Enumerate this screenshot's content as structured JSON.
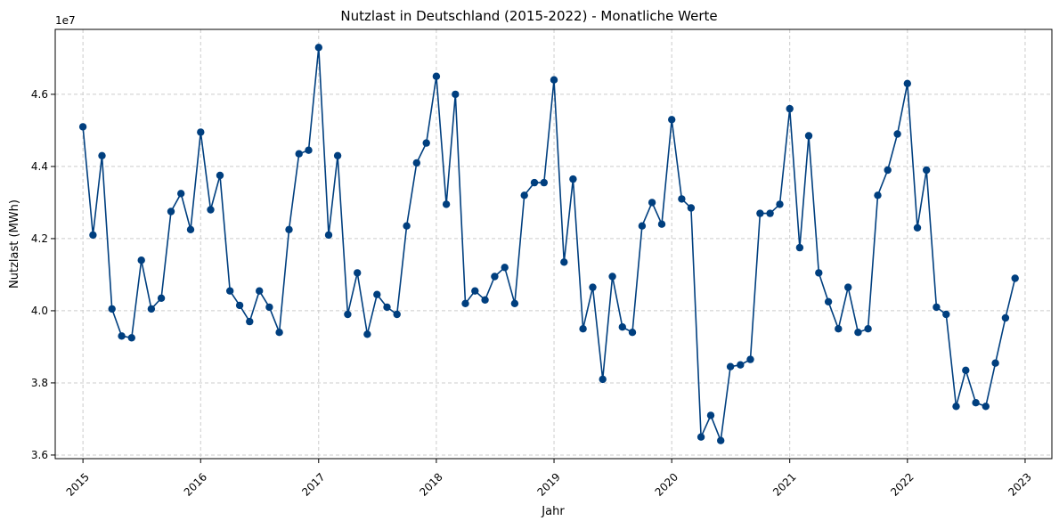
{
  "chart_data": {
    "type": "line",
    "title": "Nutzlast in Deutschland (2015-2022) - Monatliche Werte",
    "xlabel": "Jahr",
    "ylabel": "Nutzlast (MWh)",
    "y_offset_label": "1e7",
    "x_ticks": [
      "2015",
      "2016",
      "2017",
      "2018",
      "2019",
      "2020",
      "2021",
      "2022",
      "2023"
    ],
    "y_ticks": [
      "3.6",
      "3.8",
      "4.0",
      "4.2",
      "4.4",
      "4.6"
    ],
    "xlim": [
      "2014-10-07",
      "2023-03-25"
    ],
    "ylim": [
      35900000,
      47800000
    ],
    "grid": true,
    "marker": "circle",
    "line_color": "#003f7f",
    "series": [
      {
        "x": [
          "2015-01",
          "2015-02",
          "2015-03",
          "2015-04",
          "2015-05",
          "2015-06",
          "2015-07",
          "2015-08",
          "2015-09",
          "2015-10",
          "2015-11",
          "2015-12",
          "2016-01",
          "2016-02",
          "2016-03",
          "2016-04",
          "2016-05",
          "2016-06",
          "2016-07",
          "2016-08",
          "2016-09",
          "2016-10",
          "2016-11",
          "2016-12",
          "2017-01",
          "2017-02",
          "2017-03",
          "2017-04",
          "2017-05",
          "2017-06",
          "2017-07",
          "2017-08",
          "2017-09",
          "2017-10",
          "2017-11",
          "2017-12",
          "2018-01",
          "2018-02",
          "2018-03",
          "2018-04",
          "2018-05",
          "2018-06",
          "2018-07",
          "2018-08",
          "2018-09",
          "2018-10",
          "2018-11",
          "2018-12",
          "2019-01",
          "2019-02",
          "2019-03",
          "2019-04",
          "2019-05",
          "2019-06",
          "2019-07",
          "2019-08",
          "2019-09",
          "2019-10",
          "2019-11",
          "2019-12",
          "2020-01",
          "2020-02",
          "2020-03",
          "2020-04",
          "2020-05",
          "2020-06",
          "2020-07",
          "2020-08",
          "2020-09",
          "2020-10",
          "2020-11",
          "2020-12",
          "2021-01",
          "2021-02",
          "2021-03",
          "2021-04",
          "2021-05",
          "2021-06",
          "2021-07",
          "2021-08",
          "2021-09",
          "2021-10",
          "2021-11",
          "2021-12",
          "2022-01",
          "2022-02",
          "2022-03",
          "2022-04",
          "2022-05",
          "2022-06",
          "2022-07",
          "2022-08",
          "2022-09",
          "2022-10",
          "2022-11",
          "2022-12"
        ],
        "values": [
          45100000,
          42100000,
          44300000,
          40050000,
          39300000,
          39250000,
          41400000,
          40050000,
          40350000,
          42750000,
          43250000,
          42250000,
          44950000,
          42800000,
          43750000,
          40550000,
          40150000,
          39700000,
          40550000,
          40100000,
          39400000,
          42250000,
          44350000,
          44450000,
          47300000,
          42100000,
          44300000,
          39900000,
          41050000,
          39350000,
          40450000,
          40100000,
          39900000,
          42350000,
          44100000,
          44650000,
          46500000,
          42950000,
          46000000,
          40200000,
          40550000,
          40300000,
          40950000,
          41200000,
          40200000,
          43200000,
          43550000,
          43550000,
          46400000,
          41350000,
          43650000,
          39500000,
          40650000,
          38100000,
          40950000,
          39550000,
          39400000,
          42350000,
          43000000,
          42400000,
          45300000,
          43100000,
          42850000,
          36500000,
          37100000,
          36400000,
          38450000,
          38500000,
          38650000,
          42700000,
          42700000,
          42950000,
          45600000,
          41750000,
          44850000,
          41050000,
          40250000,
          39500000,
          40650000,
          39400000,
          39500000,
          43200000,
          43900000,
          44900000,
          46300000,
          42300000,
          43900000,
          40100000,
          39900000,
          37350000,
          38350000,
          37450000,
          37350000,
          38550000,
          39800000,
          40900000
        ]
      }
    ]
  }
}
